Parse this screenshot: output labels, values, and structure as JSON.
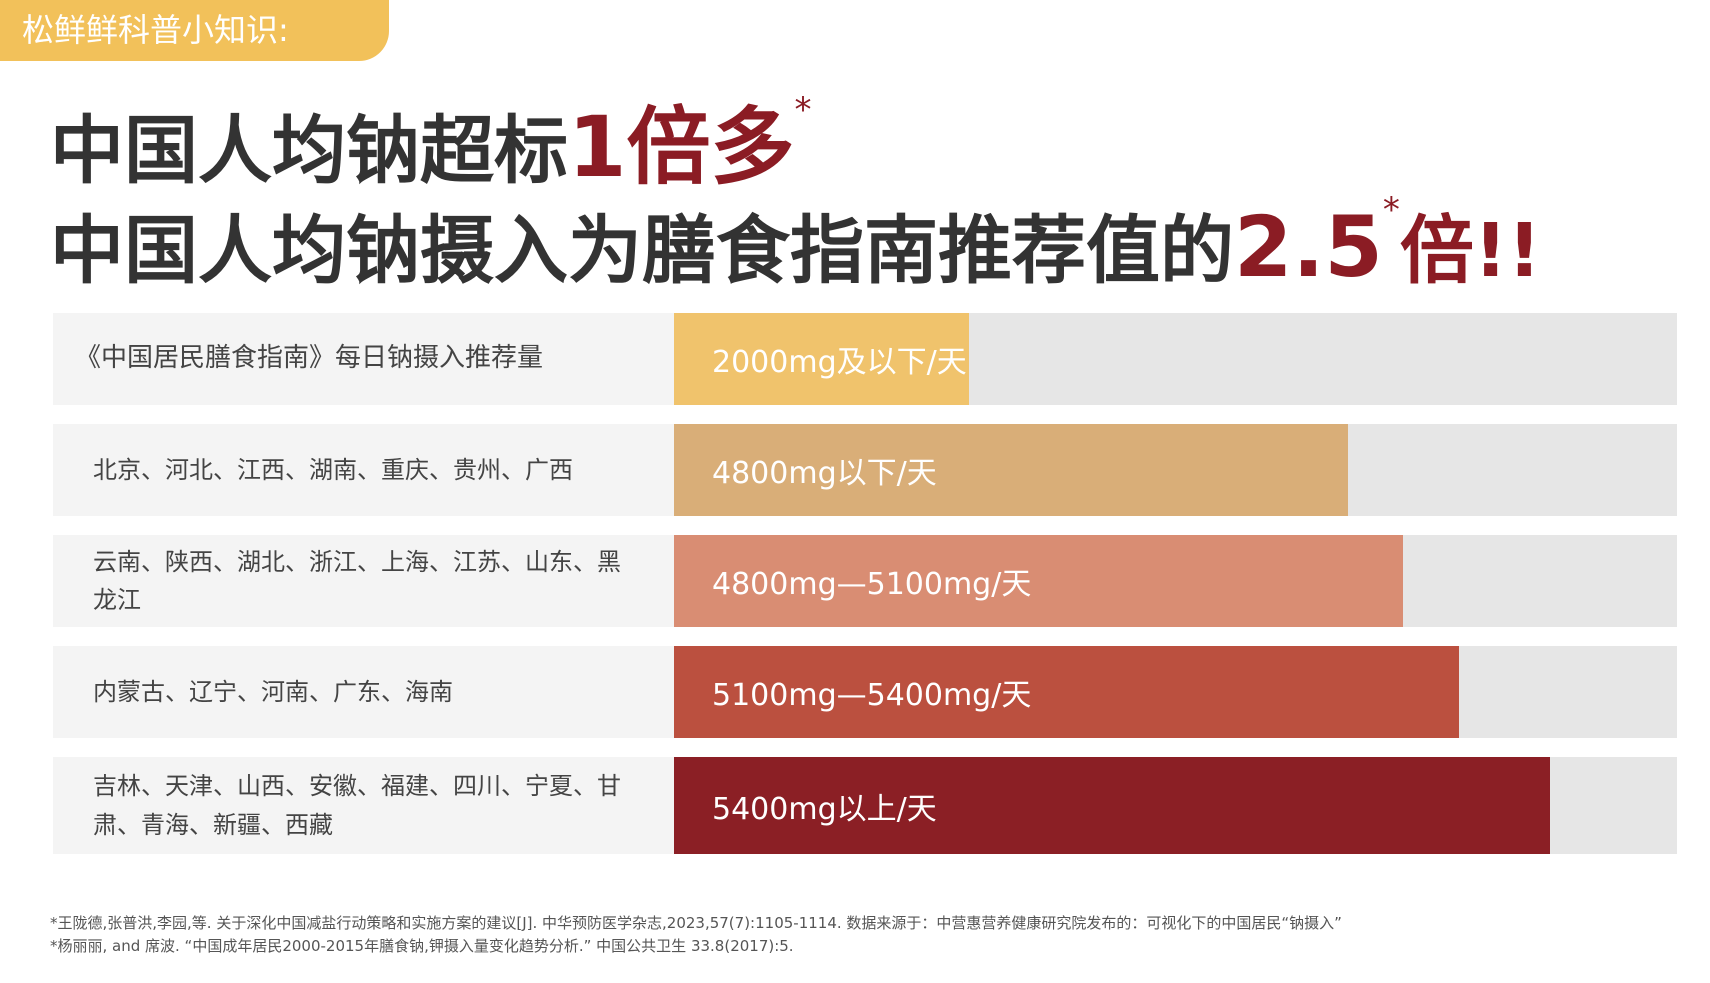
{
  "header": {
    "tag": "松鲜鲜科普小知识:"
  },
  "title": {
    "line1": {
      "text": "中国人均钠超标",
      "highlight": "1倍多",
      "mark": "*"
    },
    "line2": {
      "text": "中国人均钠摄入为膳食指南推荐值的",
      "highlight": "2.5",
      "mark": "*",
      "suffix": "倍!!"
    }
  },
  "rows": [
    {
      "region": "《中国居民膳食指南》每日钠摄入推荐量",
      "amount": "2000mg及以下/天"
    },
    {
      "region": "北京、河北、江西、湖南、重庆、贵州、广西",
      "amount": "4800mg以下/天"
    },
    {
      "region": "云南、陕西、湖北、浙江、上海、江苏、山东、黑龙江",
      "amount": "4800mg—5100mg/天"
    },
    {
      "region": "内蒙古、辽宁、河南、广东、海南",
      "amount": "5100mg—5400mg/天"
    },
    {
      "region": "吉林、天津、山西、安徽、福建、四川、宁夏、甘肃、青海、新疆、西藏",
      "amount": "5400mg以上/天"
    }
  ],
  "footnotes": [
    "*王陇德,张普洪,李园,等. 关于深化中国减盐行动策略和实施方案的建议[J]. 中华预防医学杂志,2023,57(7):1105-1114. 数据来源于：中营惠营养健康研究院发布的：可视化下的中国居民“钠摄入”",
    "*杨丽丽, and 席波. “中国成年居民2000-2015年膳食钠,钾摄入量变化趋势分析.” 中国公共卫生 33.8(2017):5."
  ]
}
